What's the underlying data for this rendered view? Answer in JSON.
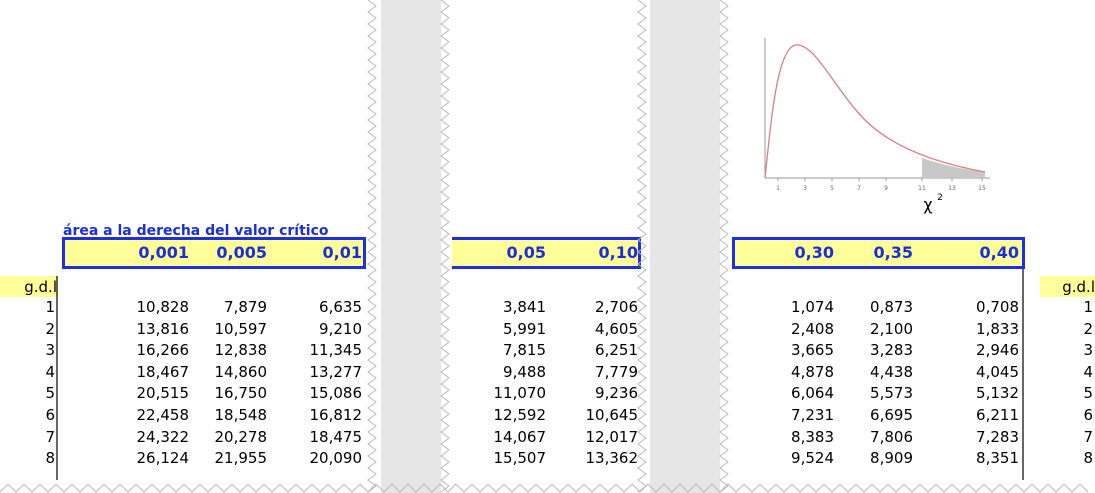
{
  "table": {
    "caption": "área a la derecha del valor crítico",
    "header_label": "g.d.l",
    "columns": [
      "0,001",
      "0,005",
      "0,01",
      "0,05",
      "0,10",
      "0,30",
      "0,35",
      "0,40"
    ],
    "rows": [
      {
        "gdl": "1",
        "values": [
          "10,828",
          "7,879",
          "6,635",
          "3,841",
          "2,706",
          "1,074",
          "0,873",
          "0,708"
        ]
      },
      {
        "gdl": "2",
        "values": [
          "13,816",
          "10,597",
          "9,210",
          "5,991",
          "4,605",
          "2,408",
          "2,100",
          "1,833"
        ]
      },
      {
        "gdl": "3",
        "values": [
          "16,266",
          "12,838",
          "11,345",
          "7,815",
          "6,251",
          "3,665",
          "3,283",
          "2,946"
        ]
      },
      {
        "gdl": "4",
        "values": [
          "18,467",
          "14,860",
          "13,277",
          "9,488",
          "7,779",
          "4,878",
          "4,438",
          "4,045"
        ]
      },
      {
        "gdl": "5",
        "values": [
          "20,515",
          "16,750",
          "15,086",
          "11,070",
          "9,236",
          "6,064",
          "5,573",
          "5,132"
        ]
      },
      {
        "gdl": "6",
        "values": [
          "22,458",
          "18,548",
          "16,812",
          "12,592",
          "10,645",
          "7,231",
          "6,695",
          "6,211"
        ]
      },
      {
        "gdl": "7",
        "values": [
          "24,322",
          "20,278",
          "18,475",
          "14,067",
          "12,017",
          "8,383",
          "7,806",
          "7,283"
        ]
      },
      {
        "gdl": "8",
        "values": [
          "26,124",
          "21,955",
          "20,090",
          "15,507",
          "13,362",
          "9,524",
          "8,909",
          "8,351"
        ]
      }
    ]
  },
  "figure": {
    "ticks": [
      "1",
      "3",
      "5",
      "7",
      "9",
      "11",
      "13",
      "15"
    ],
    "symbol": "χ",
    "exponent": "2"
  }
}
